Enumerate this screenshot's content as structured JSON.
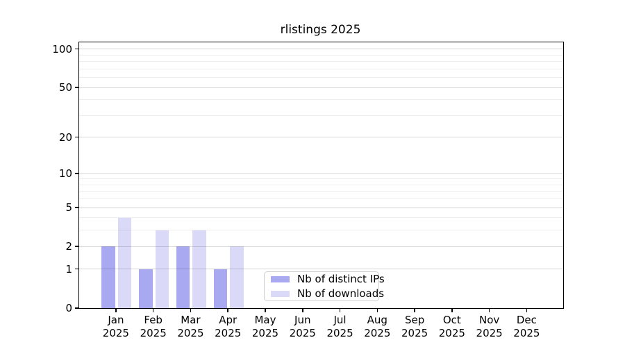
{
  "chart_data": {
    "type": "bar",
    "title": "rlistings 2025",
    "categories": [
      "Jan",
      "Feb",
      "Mar",
      "Apr",
      "May",
      "Jun",
      "Jul",
      "Aug",
      "Sep",
      "Oct",
      "Nov",
      "Dec"
    ],
    "category_year": "2025",
    "series": [
      {
        "name": "Nb of distinct IPs",
        "color": "#a9a9f2",
        "values": [
          2,
          1,
          2,
          1,
          0,
          0,
          0,
          0,
          0,
          0,
          0,
          0
        ]
      },
      {
        "name": "Nb of downloads",
        "color": "#dadaf8",
        "values": [
          4,
          3,
          3,
          2,
          0,
          0,
          0,
          0,
          0,
          0,
          0,
          0
        ]
      }
    ],
    "y_scale": "log10(1+value)",
    "y_ticks_major": [
      0,
      1,
      2,
      5,
      10,
      20,
      50,
      100
    ],
    "y_ticks_minor": [
      3,
      4,
      6,
      7,
      8,
      9,
      30,
      40,
      60,
      70,
      80,
      90
    ],
    "ylim": [
      0,
      113
    ],
    "xlabel": "",
    "ylabel": "",
    "grid": "horizontal",
    "legend_position": "lower center"
  }
}
